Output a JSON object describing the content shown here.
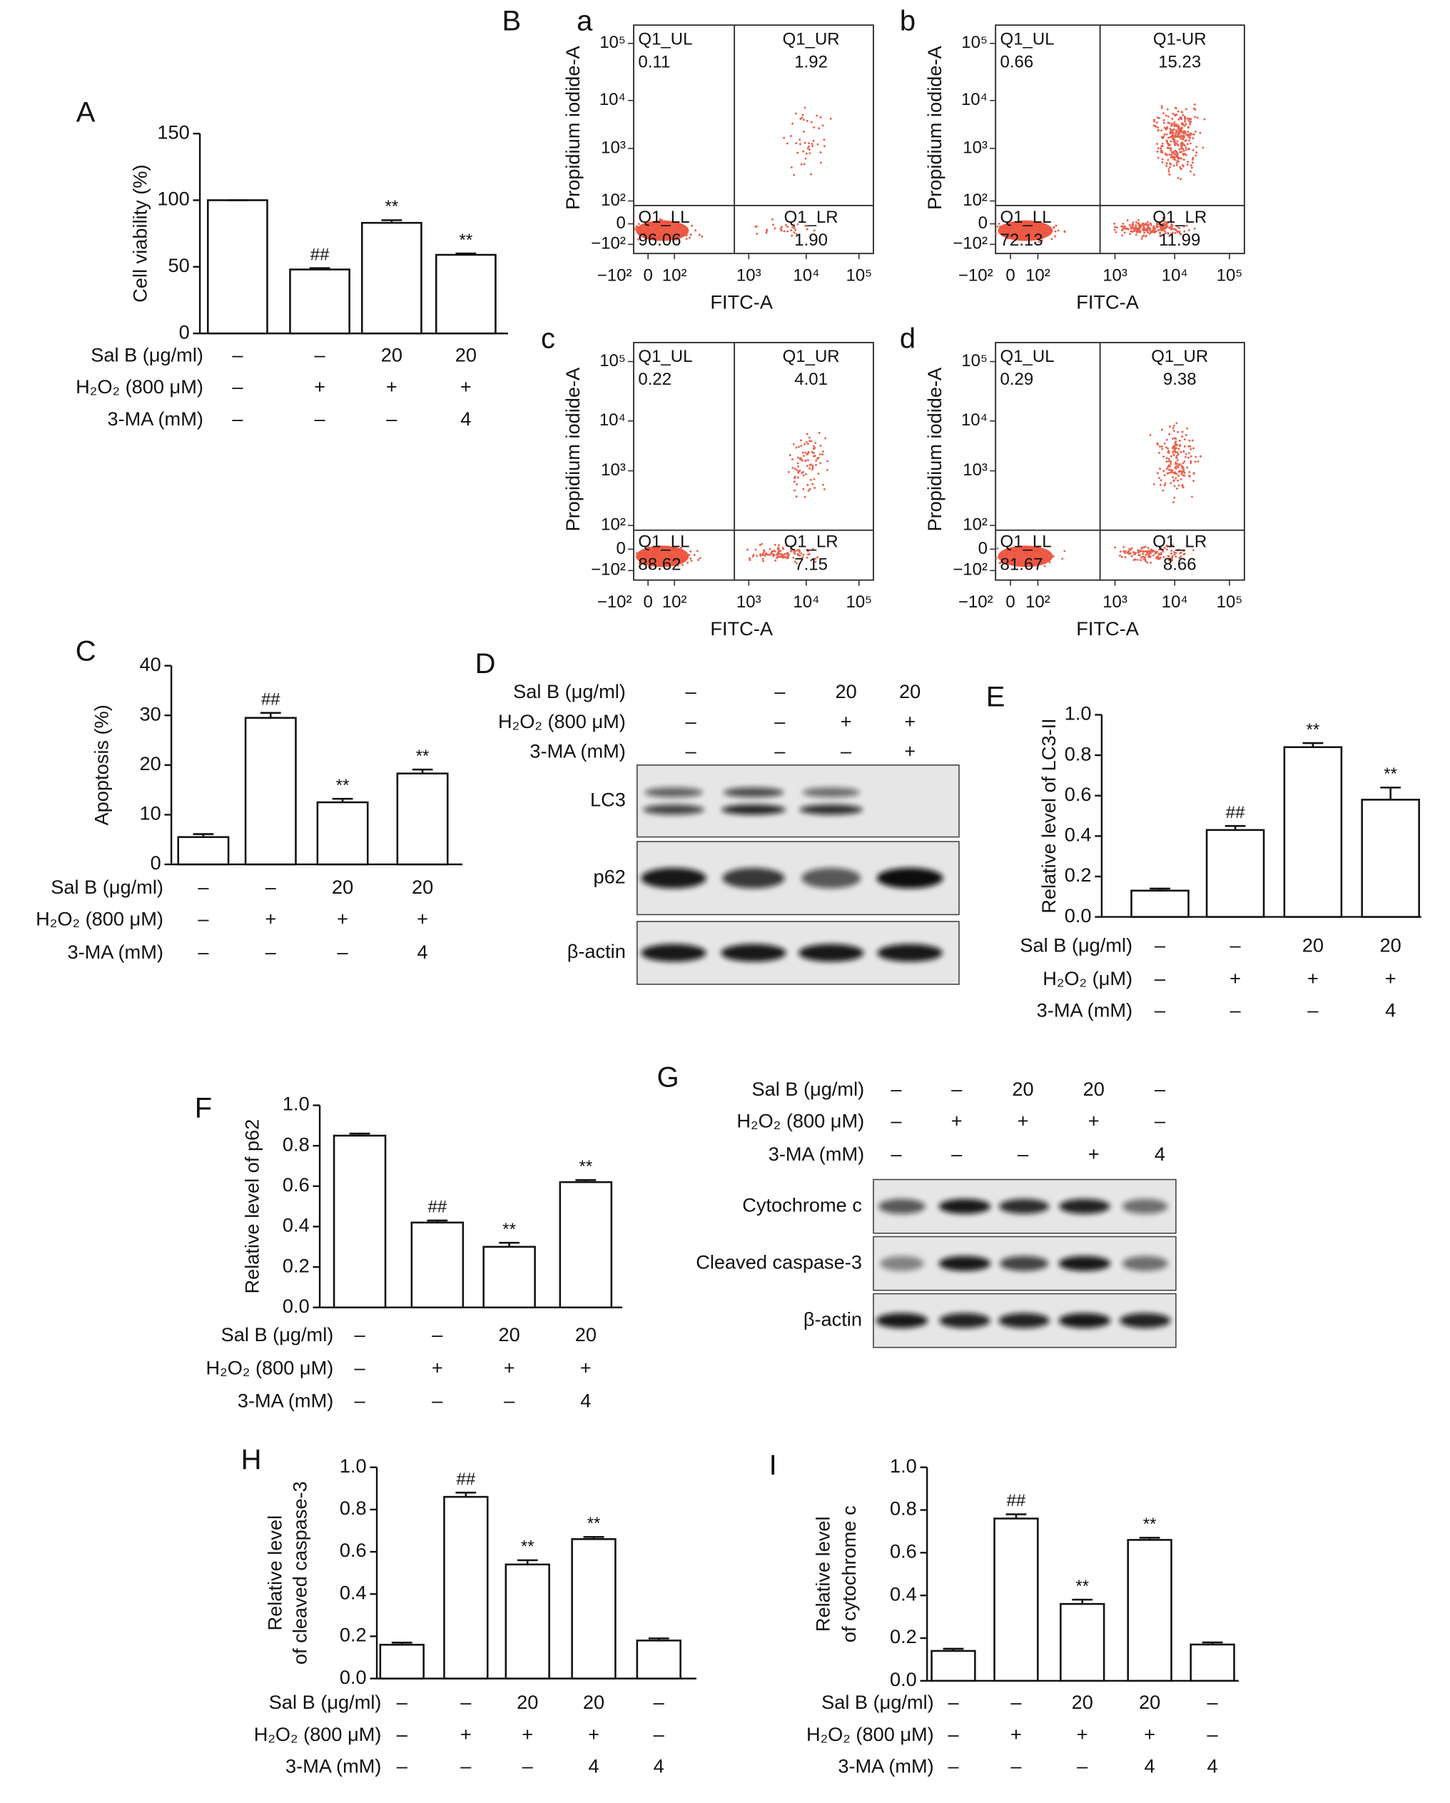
{
  "chart_data": [
    {
      "type": "bar",
      "panel_label": "A",
      "ylabel": "Cell viability (%)",
      "ylim": [
        0,
        150
      ],
      "yticks": [
        0,
        50,
        100,
        150
      ],
      "values": [
        100,
        48,
        83,
        59
      ],
      "errors": [
        0,
        1,
        2,
        1
      ],
      "annotations": [
        null,
        "##",
        "**",
        "**"
      ],
      "color": "#ffffff",
      "conditions": [
        {
          "label": "Sal B (μg/ml)",
          "values": [
            "–",
            "–",
            "20",
            "20"
          ]
        },
        {
          "label": "H₂O₂ (800 μM)",
          "values": [
            "–",
            "+",
            "+",
            "+"
          ]
        },
        {
          "label": "3-MA (mM)",
          "values": [
            "–",
            "–",
            "–",
            "4"
          ]
        }
      ]
    },
    {
      "type": "bar",
      "panel_label": "C",
      "ylabel": "Apoptosis (%)",
      "ylim": [
        0,
        40
      ],
      "yticks": [
        0,
        10,
        20,
        30,
        40
      ],
      "values": [
        5.5,
        29.5,
        12.5,
        18.3
      ],
      "errors": [
        0.6,
        1.0,
        0.7,
        0.8
      ],
      "annotations": [
        null,
        "##",
        "**",
        "**"
      ],
      "color": "#ffffff",
      "conditions": [
        {
          "label": "Sal B (μg/ml)",
          "values": [
            "–",
            "–",
            "20",
            "20"
          ]
        },
        {
          "label": "H₂O₂ (800 μM)",
          "values": [
            "–",
            "+",
            "+",
            "+"
          ]
        },
        {
          "label": "3-MA (mM)",
          "values": [
            "–",
            "–",
            "–",
            "4"
          ]
        }
      ]
    },
    {
      "type": "bar",
      "panel_label": "E",
      "ylabel": "Relative level of LC3-II",
      "ylim": [
        0,
        1
      ],
      "yticks": [
        {
          "value": 0,
          "label": "0.0"
        },
        0.2,
        0.4,
        0.6,
        0.8,
        {
          "value": 1,
          "label": "1.0"
        }
      ],
      "values": [
        0.13,
        0.43,
        0.84,
        0.58
      ],
      "errors": [
        0.01,
        0.02,
        0.02,
        0.06
      ],
      "annotations": [
        null,
        "##",
        "**",
        "**"
      ],
      "color": "#ffffff",
      "conditions": [
        {
          "label": "Sal B (μg/ml)",
          "values": [
            "–",
            "–",
            "20",
            "20"
          ]
        },
        {
          "label": "H₂O₂ (μM)",
          "values": [
            "–",
            "+",
            "+",
            "+"
          ]
        },
        {
          "label": "3-MA (mM)",
          "values": [
            "–",
            "–",
            "–",
            "4"
          ]
        }
      ]
    },
    {
      "type": "bar",
      "panel_label": "F",
      "ylabel": "Relative level of p62",
      "ylim": [
        0,
        1
      ],
      "yticks": [
        {
          "value": 0,
          "label": "0.0"
        },
        0.2,
        0.4,
        0.6,
        0.8,
        {
          "value": 1,
          "label": "1.0"
        }
      ],
      "values": [
        0.85,
        0.42,
        0.3,
        0.62
      ],
      "errors": [
        0.01,
        0.01,
        0.02,
        0.01
      ],
      "annotations": [
        null,
        "##",
        "**",
        "**"
      ],
      "color": "#ffffff",
      "conditions": [
        {
          "label": "Sal B (μg/ml)",
          "values": [
            "–",
            "–",
            "20",
            "20"
          ]
        },
        {
          "label": "H₂O₂ (800 μM)",
          "values": [
            "–",
            "+",
            "+",
            "+"
          ]
        },
        {
          "label": "3-MA (mM)",
          "values": [
            "–",
            "–",
            "–",
            "4"
          ]
        }
      ]
    },
    {
      "type": "bar",
      "panel_label": "H",
      "ylabel": [
        "Relative level",
        "of cleaved caspase-3"
      ],
      "ylim": [
        0,
        1
      ],
      "yticks": [
        {
          "value": 0,
          "label": "0.0"
        },
        0.2,
        0.4,
        0.6,
        0.8,
        {
          "value": 1,
          "label": "1.0"
        }
      ],
      "values": [
        0.16,
        0.86,
        0.54,
        0.66,
        0.18
      ],
      "errors": [
        0.01,
        0.02,
        0.02,
        0.01,
        0.01
      ],
      "annotations": [
        null,
        "##",
        "**",
        "**",
        null
      ],
      "color": "#ffffff",
      "conditions": [
        {
          "label": "Sal B (μg/ml)",
          "values": [
            "–",
            "–",
            "20",
            "20",
            "–"
          ]
        },
        {
          "label": "H₂O₂ (800 μM)",
          "values": [
            "–",
            "+",
            "+",
            "+",
            "–"
          ]
        },
        {
          "label": "3-MA (mM)",
          "values": [
            "–",
            "–",
            "–",
            "4",
            "4"
          ]
        }
      ]
    },
    {
      "type": "bar",
      "panel_label": "I",
      "ylabel": [
        "Relative level",
        "of cytochrome c"
      ],
      "ylim": [
        0,
        1
      ],
      "yticks": [
        {
          "value": 0,
          "label": "0.0"
        },
        0.2,
        0.4,
        0.6,
        0.8,
        {
          "value": 1,
          "label": "1.0"
        }
      ],
      "values": [
        0.14,
        0.76,
        0.36,
        0.66,
        0.17
      ],
      "errors": [
        0.01,
        0.02,
        0.02,
        0.01,
        0.01
      ],
      "annotations": [
        null,
        "##",
        "**",
        "**",
        null
      ],
      "color": "#ffffff",
      "conditions": [
        {
          "label": "Sal B (μg/ml)",
          "values": [
            "–",
            "–",
            "20",
            "20",
            "–"
          ]
        },
        {
          "label": "H₂O₂ (800 μM)",
          "values": [
            "–",
            "+",
            "+",
            "+",
            "–"
          ]
        },
        {
          "label": "3-MA (mM)",
          "values": [
            "–",
            "–",
            "–",
            "4",
            "4"
          ]
        }
      ]
    }
  ],
  "flow_cytometry": {
    "panel_label": "B",
    "x_label": "FITC-A",
    "y_label": "Propidium iodide-A",
    "xtick_labels": [
      "−10²",
      "0",
      "10²",
      "10³",
      "10⁴",
      "10⁵"
    ],
    "ytick_labels": [
      "10⁵",
      "10⁴",
      "10³",
      "10²",
      "0",
      "−10²"
    ],
    "plots": [
      {
        "label": "a",
        "quadrants": {
          "UL": {
            "name": "Q1_UL",
            "value": "0.11"
          },
          "UR": {
            "name": "Q1_UR",
            "value": "1.92"
          },
          "LL": {
            "name": "Q1_LL",
            "value": "96.06"
          },
          "LR": {
            "name": "Q1_LR",
            "value": "1.90"
          }
        }
      },
      {
        "label": "b",
        "quadrants": {
          "UL": {
            "name": "Q1_UL",
            "value": "0.66"
          },
          "UR": {
            "name": "Q1-UR",
            "value": "15.23"
          },
          "LL": {
            "name": "Q1_LL",
            "value": "72.13"
          },
          "LR": {
            "name": "Q1_LR",
            "value": "11.99"
          }
        }
      },
      {
        "label": "c",
        "quadrants": {
          "UL": {
            "name": "Q1_UL",
            "value": "0.22"
          },
          "UR": {
            "name": "Q1_UR",
            "value": "4.01"
          },
          "LL": {
            "name": "Q1_LL",
            "value": "88.62"
          },
          "LR": {
            "name": "Q1_LR",
            "value": "7.15"
          }
        }
      },
      {
        "label": "d",
        "quadrants": {
          "UL": {
            "name": "Q1_UL",
            "value": "0.29"
          },
          "UR": {
            "name": "Q1_UR",
            "value": "9.38"
          },
          "LL": {
            "name": "Q1_LL",
            "value": "81.67"
          },
          "LR": {
            "name": "Q1_LR",
            "value": "8.66"
          }
        }
      }
    ]
  },
  "blots": [
    {
      "panel_label": "D",
      "conditions": [
        {
          "label": "Sal B (μg/ml)",
          "values": [
            "–",
            "–",
            "20",
            "20"
          ]
        },
        {
          "label": "H₂O₂ (800 μM)",
          "values": [
            "–",
            "–",
            "+",
            "+"
          ]
        },
        {
          "label": "3-MA (mM)",
          "values": [
            "–",
            "–",
            "–",
            "+"
          ]
        }
      ],
      "rows": [
        "LC3",
        "p62",
        "β-actin"
      ]
    },
    {
      "panel_label": "G",
      "conditions": [
        {
          "label": "Sal B (μg/ml)",
          "values": [
            "–",
            "–",
            "20",
            "20",
            "–"
          ]
        },
        {
          "label": "H₂O₂ (800 μM)",
          "values": [
            "–",
            "+",
            "+",
            "+",
            "–"
          ]
        },
        {
          "label": "3-MA (mM)",
          "values": [
            "–",
            "–",
            "–",
            "+",
            "4"
          ]
        }
      ],
      "rows": [
        "Cytochrome c",
        "Cleaved caspase-3",
        "β-actin"
      ]
    }
  ]
}
